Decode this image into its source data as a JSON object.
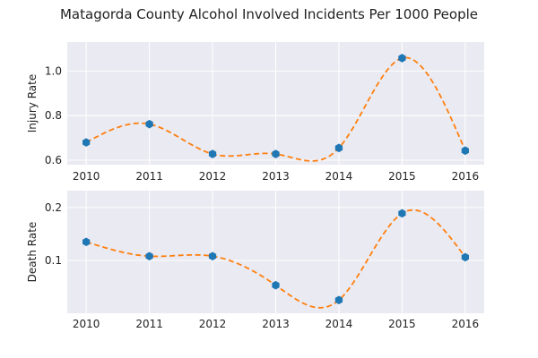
{
  "chart_title": "Matagorda County Alcohol Involved Incidents Per 1000 People",
  "chart_data": [
    {
      "type": "line",
      "ylabel": "Injury Rate",
      "xlabel": "",
      "x": [
        2010,
        2011,
        2012,
        2013,
        2014,
        2015,
        2016
      ],
      "values": [
        0.68,
        0.762,
        0.628,
        0.628,
        0.655,
        1.058,
        0.643
      ],
      "xlim": [
        2009.7,
        2016.3
      ],
      "ylim": [
        0.58,
        1.13
      ],
      "yticks": [
        0.6,
        0.8,
        1.0
      ],
      "ytick_labels": [
        "0.6",
        "0.8",
        "1.0"
      ],
      "xtick_labels": [
        "2010",
        "2011",
        "2012",
        "2013",
        "2014",
        "2015",
        "2016"
      ],
      "grid": true,
      "markers": "hexagon",
      "smoothed_curve": "dashed",
      "colors": {
        "markers": "#1f77b4",
        "curve": "#ff7f0e",
        "background": "#eaeaf2"
      }
    },
    {
      "type": "line",
      "ylabel": "Death Rate",
      "xlabel": "",
      "x": [
        2010,
        2011,
        2012,
        2013,
        2014,
        2015,
        2016
      ],
      "values": [
        0.135,
        0.108,
        0.108,
        0.053,
        0.025,
        0.189,
        0.106
      ],
      "xlim": [
        2009.7,
        2016.3
      ],
      "ylim": [
        0.0,
        0.232
      ],
      "yticks": [
        0.1,
        0.2
      ],
      "ytick_labels": [
        "0.1",
        "0.2"
      ],
      "xtick_labels": [
        "2010",
        "2011",
        "2012",
        "2013",
        "2014",
        "2015",
        "2016"
      ],
      "grid": true,
      "markers": "hexagon",
      "smoothed_curve": "dashed",
      "colors": {
        "markers": "#1f77b4",
        "curve": "#ff7f0e",
        "background": "#eaeaf2"
      }
    }
  ]
}
